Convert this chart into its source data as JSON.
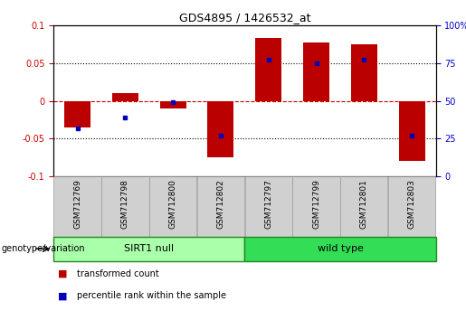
{
  "title": "GDS4895 / 1426532_at",
  "samples": [
    "GSM712769",
    "GSM712798",
    "GSM712800",
    "GSM712802",
    "GSM712797",
    "GSM712799",
    "GSM712801",
    "GSM712803"
  ],
  "red_bars": [
    -0.035,
    0.01,
    -0.01,
    -0.075,
    0.083,
    0.077,
    0.075,
    -0.08
  ],
  "blue_dots": [
    -0.037,
    -0.022,
    -0.002,
    -0.046,
    0.055,
    0.05,
    0.055,
    -0.046
  ],
  "groups": [
    {
      "label": "SIRT1 null",
      "start": 0,
      "end": 4,
      "color": "#AAFFAA"
    },
    {
      "label": "wild type",
      "start": 4,
      "end": 8,
      "color": "#33DD55"
    }
  ],
  "ylim": [
    -0.1,
    0.1
  ],
  "yticks": [
    -0.1,
    -0.05,
    0.0,
    0.05,
    0.1
  ],
  "ytick_labels": [
    "-0.1",
    "-0.05",
    "0",
    "0.05",
    "0.1"
  ],
  "right_yticks": [
    0,
    25,
    50,
    75,
    100
  ],
  "right_ytick_labels": [
    "0",
    "25",
    "50",
    "75",
    "100%"
  ],
  "bar_color": "#BB0000",
  "dot_color": "#0000BB",
  "zero_line_color": "#CC0000",
  "left_label_color": "#CC0000",
  "right_label_color": "#0000CC",
  "bar_width": 0.55,
  "legend_red": "transformed count",
  "legend_blue": "percentile rank within the sample",
  "genotype_label": "genotype/variation"
}
